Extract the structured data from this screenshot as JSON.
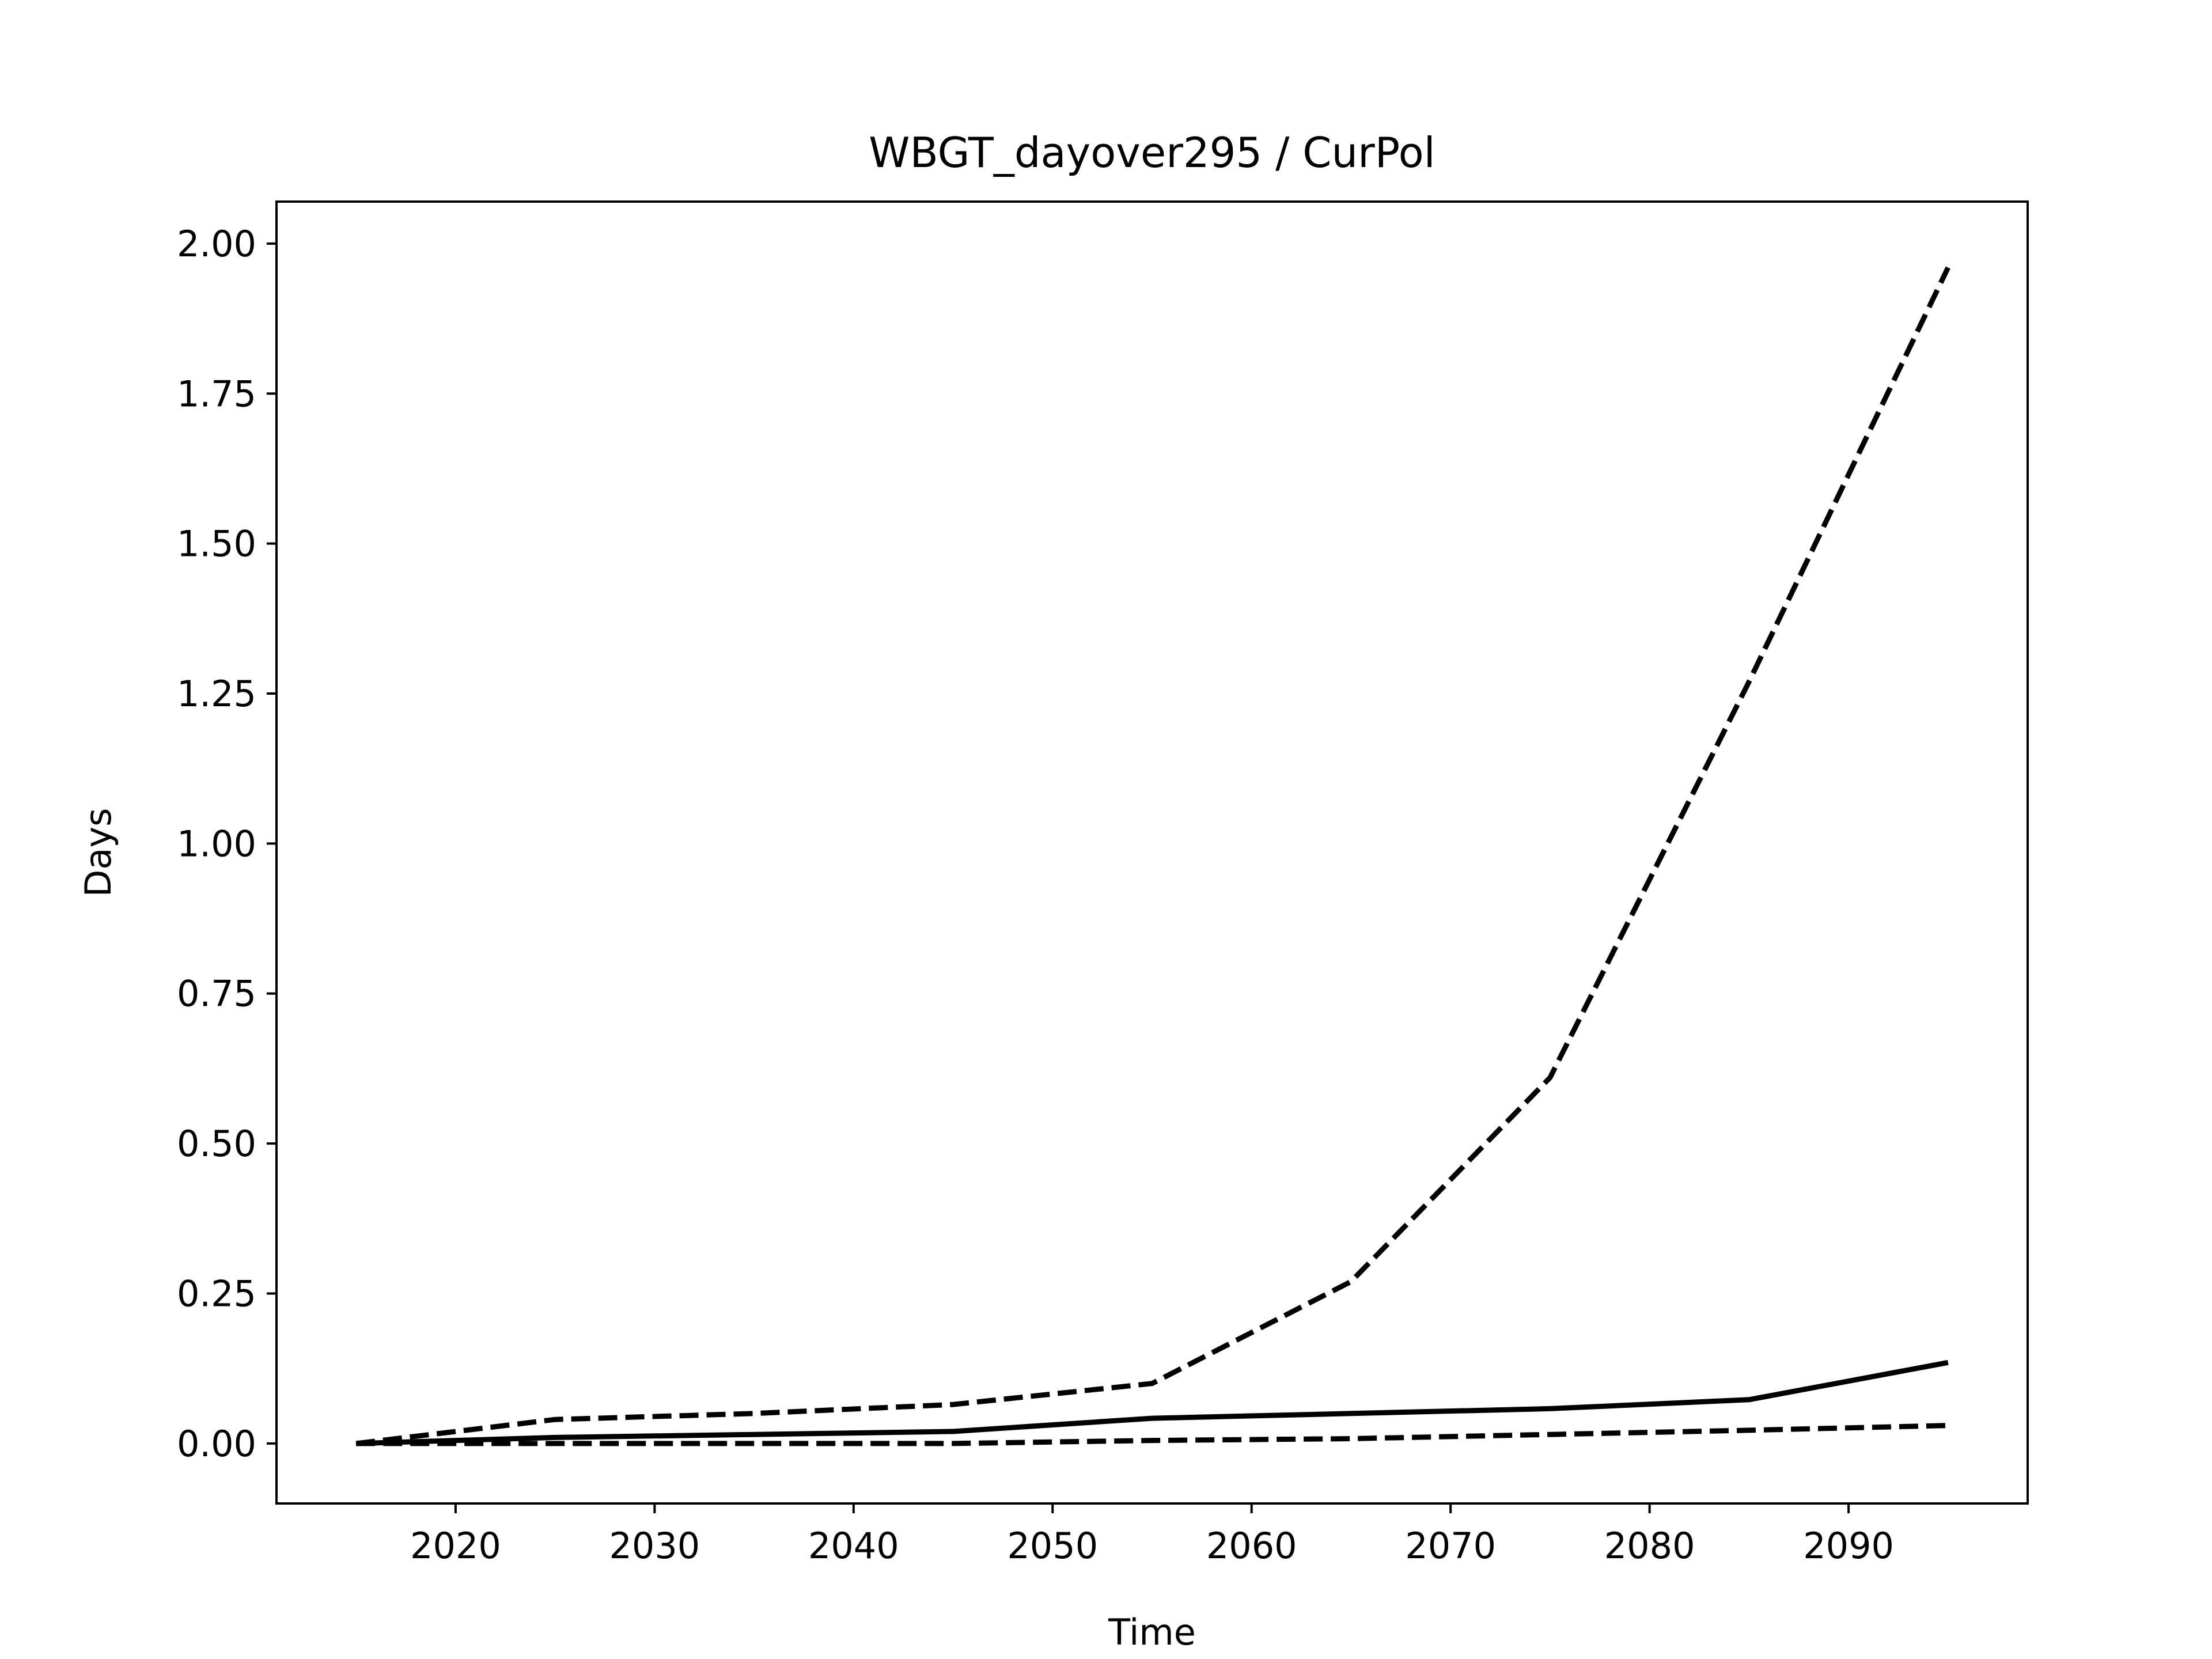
{
  "chart_data": {
    "type": "line",
    "title": "WBGT_dayover295 / CurPol",
    "xlabel": "Time",
    "ylabel": "Days",
    "xlim": [
      2011,
      2099
    ],
    "ylim": [
      -0.1,
      2.07
    ],
    "x_ticks": [
      2020,
      2030,
      2040,
      2050,
      2060,
      2070,
      2080,
      2090
    ],
    "y_ticks": [
      0.0,
      0.25,
      0.5,
      0.75,
      1.0,
      1.25,
      1.5,
      1.75,
      2.0
    ],
    "y_tick_labels": [
      "0.00",
      "0.25",
      "0.50",
      "0.75",
      "1.00",
      "1.25",
      "1.50",
      "1.75",
      "2.00"
    ],
    "grid": false,
    "x": [
      2015,
      2025,
      2035,
      2045,
      2055,
      2065,
      2075,
      2085,
      2095
    ],
    "series": [
      {
        "style": "dashed",
        "values": [
          0.0,
          0.04,
          0.05,
          0.065,
          0.1,
          0.27,
          0.61,
          1.27,
          1.96
        ]
      },
      {
        "style": "solid",
        "values": [
          0.0,
          0.01,
          0.015,
          0.02,
          0.042,
          0.05,
          0.058,
          0.073,
          0.135
        ]
      },
      {
        "style": "dashed",
        "values": [
          0.0,
          0.0,
          0.0,
          0.0,
          0.005,
          0.008,
          0.015,
          0.022,
          0.03
        ]
      }
    ],
    "colors": {
      "line": "#000000",
      "axes": "#000000",
      "background": "#ffffff"
    }
  }
}
